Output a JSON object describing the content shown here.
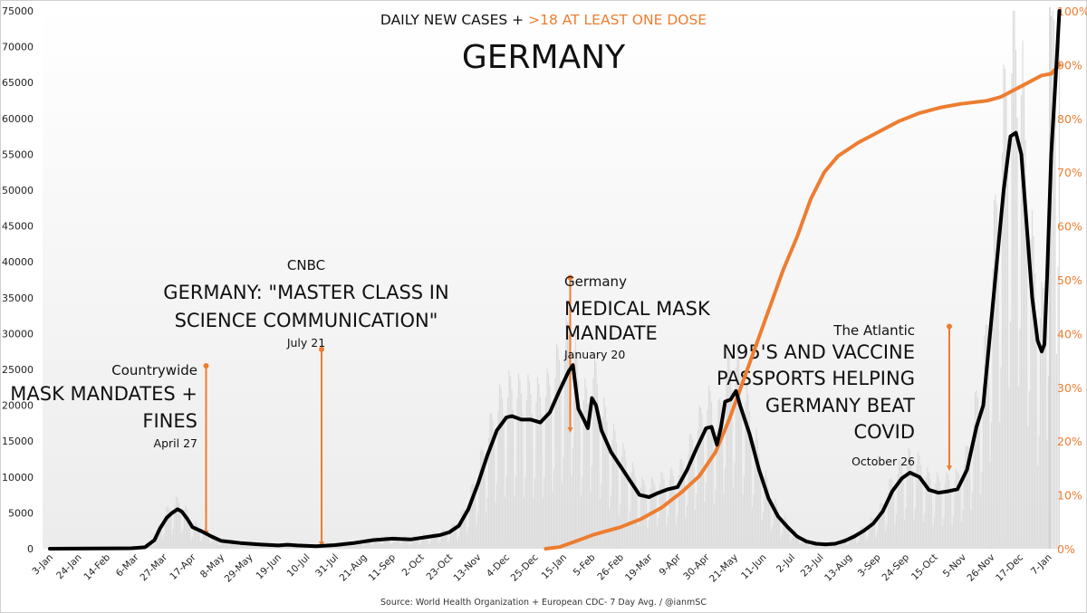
{
  "chart_data": {
    "type": "line",
    "title": "GERMANY",
    "subtitle_parts": [
      {
        "text": "DAILY NEW CASES + ",
        "color": "#111111"
      },
      {
        "text": ">18 AT LEAST ONE DOSE",
        "color": "#ed7d31"
      }
    ],
    "source": "Source: World Health Organization + European CDC- 7 Day Avg. / @ianmSC",
    "x_start_date": "2020-01-03",
    "x_end_day": 735,
    "x_tick_labels": [
      "3-Jan",
      "24-Jan",
      "14-Feb",
      "6-Mar",
      "27-Mar",
      "17-Apr",
      "8-May",
      "29-May",
      "19-Jun",
      "10-Jul",
      "31-Jul",
      "21-Aug",
      "11-Sep",
      "2-Oct",
      "23-Oct",
      "13-Nov",
      "4-Dec",
      "25-Dec",
      "15-Jan",
      "5-Feb",
      "26-Feb",
      "19-Mar",
      "9-Apr",
      "30-Apr",
      "21-May",
      "11-Jun",
      "2-Jul",
      "23-Jul",
      "13-Aug",
      "3-Sep",
      "24-Sep",
      "15-Oct",
      "5-Nov",
      "26-Nov",
      "17-Dec",
      "7-Jan"
    ],
    "x_tick_interval_days": 21,
    "y_left": {
      "label": "Daily new cases",
      "min": 0,
      "max": 75000,
      "step": 5000
    },
    "y_right": {
      "label": ">18 at least one dose",
      "min": 0,
      "max": 100,
      "step": 10,
      "suffix": "%",
      "color": "#ed7d31"
    },
    "series": [
      {
        "name": "Daily new cases (7-day avg)",
        "axis": "left",
        "color": "#000000",
        "points_day_value": [
          [
            0,
            0
          ],
          [
            30,
            20
          ],
          [
            60,
            60
          ],
          [
            70,
            200
          ],
          [
            77,
            1200
          ],
          [
            81,
            2800
          ],
          [
            86,
            4300
          ],
          [
            90,
            5000
          ],
          [
            94,
            5500
          ],
          [
            97,
            5200
          ],
          [
            101,
            4200
          ],
          [
            105,
            3000
          ],
          [
            112,
            2400
          ],
          [
            119,
            1700
          ],
          [
            126,
            1100
          ],
          [
            140,
            800
          ],
          [
            154,
            600
          ],
          [
            168,
            450
          ],
          [
            175,
            550
          ],
          [
            182,
            450
          ],
          [
            196,
            350
          ],
          [
            210,
            500
          ],
          [
            224,
            800
          ],
          [
            238,
            1200
          ],
          [
            252,
            1400
          ],
          [
            266,
            1300
          ],
          [
            280,
            1700
          ],
          [
            287,
            1900
          ],
          [
            294,
            2300
          ],
          [
            301,
            3200
          ],
          [
            308,
            5500
          ],
          [
            315,
            9000
          ],
          [
            322,
            13000
          ],
          [
            329,
            16500
          ],
          [
            336,
            18300
          ],
          [
            340,
            18500
          ],
          [
            347,
            18000
          ],
          [
            354,
            18000
          ],
          [
            361,
            17600
          ],
          [
            368,
            19000
          ],
          [
            375,
            22000
          ],
          [
            382,
            24800
          ],
          [
            385,
            25600
          ],
          [
            389,
            19500
          ],
          [
            393,
            18000
          ],
          [
            396,
            16800
          ],
          [
            399,
            21000
          ],
          [
            402,
            20000
          ],
          [
            406,
            16500
          ],
          [
            413,
            13500
          ],
          [
            420,
            11500
          ],
          [
            427,
            9500
          ],
          [
            434,
            7500
          ],
          [
            441,
            7200
          ],
          [
            448,
            7800
          ],
          [
            455,
            8300
          ],
          [
            462,
            8600
          ],
          [
            469,
            11000
          ],
          [
            476,
            14000
          ],
          [
            483,
            16800
          ],
          [
            487,
            17000
          ],
          [
            491,
            14500
          ],
          [
            494,
            17000
          ],
          [
            497,
            20500
          ],
          [
            501,
            20800
          ],
          [
            505,
            22000
          ],
          [
            508,
            20000
          ],
          [
            515,
            16000
          ],
          [
            522,
            11000
          ],
          [
            529,
            7000
          ],
          [
            536,
            4500
          ],
          [
            543,
            3000
          ],
          [
            550,
            1700
          ],
          [
            557,
            1000
          ],
          [
            564,
            700
          ],
          [
            571,
            600
          ],
          [
            578,
            700
          ],
          [
            585,
            1100
          ],
          [
            592,
            1700
          ],
          [
            599,
            2500
          ],
          [
            606,
            3500
          ],
          [
            613,
            5200
          ],
          [
            620,
            8000
          ],
          [
            627,
            9800
          ],
          [
            633,
            10600
          ],
          [
            640,
            10000
          ],
          [
            647,
            8200
          ],
          [
            654,
            7800
          ],
          [
            661,
            8000
          ],
          [
            668,
            8300
          ],
          [
            675,
            11000
          ],
          [
            682,
            17000
          ],
          [
            687,
            20000
          ],
          [
            692,
            30000
          ],
          [
            697,
            40000
          ],
          [
            702,
            50000
          ],
          [
            707,
            57500
          ],
          [
            711,
            58000
          ],
          [
            715,
            55000
          ],
          [
            719,
            45000
          ],
          [
            723,
            35000
          ],
          [
            727,
            29000
          ],
          [
            730,
            27500
          ],
          [
            732,
            28500
          ],
          [
            734,
            38000
          ],
          [
            737,
            55000
          ],
          [
            741,
            68000
          ],
          [
            743,
            75000
          ]
        ]
      },
      {
        "name": ">18 at least one dose",
        "axis": "right",
        "color": "#ed7d31",
        "points_day_value": [
          [
            365,
            0
          ],
          [
            375,
            0.3
          ],
          [
            385,
            1.2
          ],
          [
            400,
            2.6
          ],
          [
            420,
            4.0
          ],
          [
            435,
            5.5
          ],
          [
            450,
            7.6
          ],
          [
            465,
            10.5
          ],
          [
            478,
            13.5
          ],
          [
            490,
            18
          ],
          [
            500,
            24
          ],
          [
            510,
            31
          ],
          [
            520,
            38
          ],
          [
            530,
            45
          ],
          [
            540,
            52
          ],
          [
            550,
            58
          ],
          [
            560,
            65
          ],
          [
            570,
            70
          ],
          [
            580,
            73
          ],
          [
            595,
            75.5
          ],
          [
            610,
            77.5
          ],
          [
            625,
            79.5
          ],
          [
            640,
            81
          ],
          [
            655,
            82
          ],
          [
            670,
            82.7
          ],
          [
            690,
            83.3
          ],
          [
            700,
            84
          ],
          [
            715,
            86
          ],
          [
            730,
            88
          ],
          [
            737,
            88.3
          ],
          [
            743,
            90
          ]
        ]
      }
    ],
    "daily_bars_note": "light gray daily case bars behind the 7-day average line",
    "annotations": [
      {
        "id": "countrywide",
        "source": "Countrywide",
        "headline": [
          "MASK MANDATES +",
          "FINES"
        ],
        "date": "April 27",
        "day": 115,
        "align": "right",
        "top_pct_left": 25500
      },
      {
        "id": "cnbc",
        "source": "CNBC",
        "headline": [
          "GERMANY: \"MASTER CLASS IN",
          "SCIENCE COMMUNICATION\""
        ],
        "date": "July 21",
        "day": 200,
        "align": "center",
        "top_pct_left": 27800
      },
      {
        "id": "germany",
        "source": "Germany",
        "headline": [
          "MEDICAL MASK",
          "MANDATE"
        ],
        "date": "January 20",
        "day": 383,
        "align": "left",
        "top_pct_left": 37800
      },
      {
        "id": "atlantic",
        "source": "The Atlantic",
        "headline": [
          "N95'S AND VACCINE",
          "PASSPORTS HELPING",
          "GERMANY BEAT",
          "COVID"
        ],
        "date": "October 26",
        "day": 662,
        "align": "right",
        "top_pct_left": 31000
      }
    ]
  }
}
